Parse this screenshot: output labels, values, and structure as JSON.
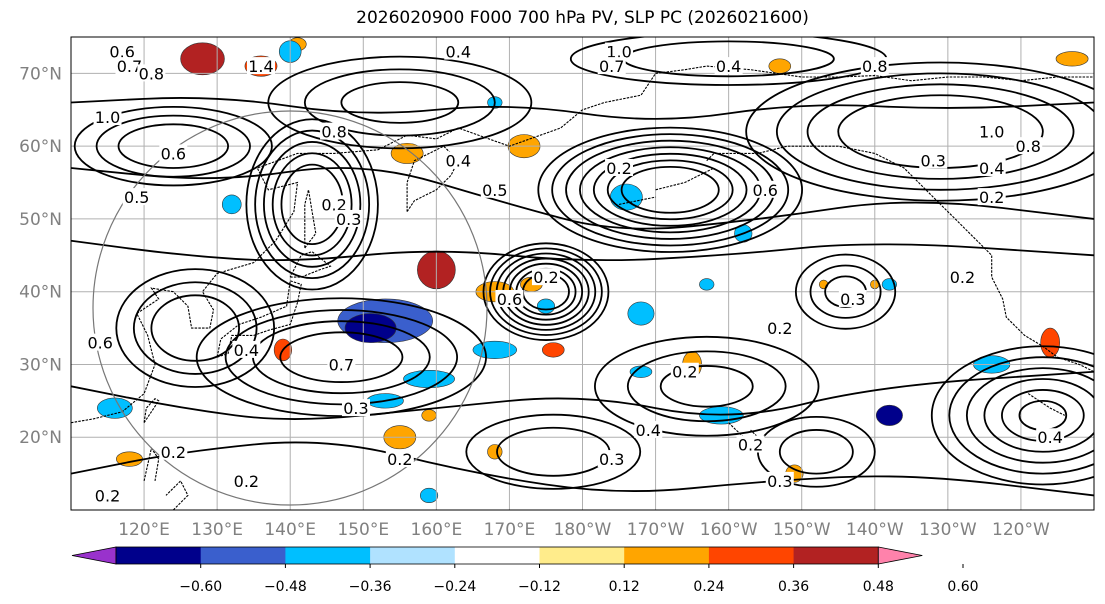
{
  "title": "2026020900 F000 700 hPa PV, SLP PC (2026021600)",
  "map": {
    "lat_labels": [
      "70°N",
      "60°N",
      "50°N",
      "40°N",
      "30°N",
      "20°N"
    ],
    "lat_values": [
      70,
      60,
      50,
      40,
      30,
      20
    ],
    "lon_labels": [
      "120°E",
      "130°E",
      "140°E",
      "150°E",
      "160°E",
      "170°E",
      "180°W",
      "170°W",
      "160°W",
      "150°W",
      "140°W",
      "130°W",
      "120°W"
    ],
    "lon_values": [
      120,
      130,
      140,
      150,
      160,
      170,
      180,
      190,
      200,
      210,
      220,
      230,
      240
    ],
    "lat_range": [
      10,
      75
    ],
    "lon_range": [
      110,
      250
    ],
    "grid": true,
    "contour_labels": [
      {
        "text": "0.6",
        "lon": 117,
        "lat": 73
      },
      {
        "text": "0.7",
        "lon": 118,
        "lat": 71
      },
      {
        "text": "0.8",
        "lon": 121,
        "lat": 70
      },
      {
        "text": "1.4",
        "lon": 136,
        "lat": 71
      },
      {
        "text": "0.4",
        "lon": 163,
        "lat": 73
      },
      {
        "text": "1.0",
        "lon": 185,
        "lat": 73
      },
      {
        "text": "0.7",
        "lon": 184,
        "lat": 71
      },
      {
        "text": "0.4",
        "lon": 200,
        "lat": 71
      },
      {
        "text": "0.8",
        "lon": 220,
        "lat": 71
      },
      {
        "text": "1.0",
        "lon": 115,
        "lat": 64
      },
      {
        "text": "0.8",
        "lon": 146,
        "lat": 62
      },
      {
        "text": "0.6",
        "lon": 124,
        "lat": 59
      },
      {
        "text": "0.5",
        "lon": 119,
        "lat": 53
      },
      {
        "text": "0.2",
        "lon": 146,
        "lat": 52
      },
      {
        "text": "0.3",
        "lon": 148,
        "lat": 50
      },
      {
        "text": "0.4",
        "lon": 163,
        "lat": 58
      },
      {
        "text": "0.5",
        "lon": 168,
        "lat": 54
      },
      {
        "text": "0.2",
        "lon": 185,
        "lat": 57
      },
      {
        "text": "0.6",
        "lon": 205,
        "lat": 54
      },
      {
        "text": "0.3",
        "lon": 228,
        "lat": 58
      },
      {
        "text": "0.4",
        "lon": 236,
        "lat": 57
      },
      {
        "text": "0.2",
        "lon": 236,
        "lat": 53
      },
      {
        "text": "0.8",
        "lon": 241,
        "lat": 60
      },
      {
        "text": "1.0",
        "lon": 236,
        "lat": 62
      },
      {
        "text": "0.2",
        "lon": 175,
        "lat": 42
      },
      {
        "text": "0.6",
        "lon": 170,
        "lat": 39
      },
      {
        "text": "0.2",
        "lon": 207,
        "lat": 35
      },
      {
        "text": "0.3",
        "lon": 217,
        "lat": 39
      },
      {
        "text": "0.2",
        "lon": 232,
        "lat": 42
      },
      {
        "text": "0.4",
        "lon": 134,
        "lat": 32
      },
      {
        "text": "0.7",
        "lon": 147,
        "lat": 30
      },
      {
        "text": "0.3",
        "lon": 149,
        "lat": 24
      },
      {
        "text": "0.2",
        "lon": 194,
        "lat": 29
      },
      {
        "text": "0.4",
        "lon": 189,
        "lat": 21
      },
      {
        "text": "0.3",
        "lon": 184,
        "lat": 17
      },
      {
        "text": "0.2",
        "lon": 203,
        "lat": 19
      },
      {
        "text": "0.4",
        "lon": 244,
        "lat": 20
      },
      {
        "text": "0.3",
        "lon": 207,
        "lat": 14
      },
      {
        "text": "0.2",
        "lon": 124,
        "lat": 18
      },
      {
        "text": "0.2",
        "lon": 155,
        "lat": 17
      },
      {
        "text": "0.2",
        "lon": 134,
        "lat": 14
      },
      {
        "text": "0.2",
        "lon": 115,
        "lat": 12
      },
      {
        "text": "0.6",
        "lon": 114,
        "lat": 33
      }
    ],
    "pv_anomalies": [
      {
        "lon": 128,
        "lat": 72,
        "rx": 3.0,
        "ry": 2.2,
        "value": 0.55
      },
      {
        "lon": 136,
        "lat": 71,
        "rx": 2.2,
        "ry": 1.4,
        "value": 0.42
      },
      {
        "lon": 141,
        "lat": 74,
        "rx": 1.2,
        "ry": 0.9,
        "value": 0.3
      },
      {
        "lon": 172,
        "lat": 60,
        "rx": 2.2,
        "ry": 1.6,
        "value": 0.33
      },
      {
        "lon": 156,
        "lat": 59,
        "rx": 2.2,
        "ry": 1.4,
        "value": 0.3
      },
      {
        "lon": 160,
        "lat": 43,
        "rx": 2.6,
        "ry": 2.6,
        "value": 0.5
      },
      {
        "lon": 168,
        "lat": 40,
        "rx": 2.6,
        "ry": 1.4,
        "value": 0.35
      },
      {
        "lon": 173,
        "lat": 41,
        "rx": 1.5,
        "ry": 1.0,
        "value": 0.3
      },
      {
        "lon": 176,
        "lat": 32,
        "rx": 1.5,
        "ry": 1.0,
        "value": 0.42
      },
      {
        "lon": 139,
        "lat": 32,
        "rx": 1.2,
        "ry": 1.5,
        "value": 0.45
      },
      {
        "lon": 155,
        "lat": 20,
        "rx": 2.2,
        "ry": 1.6,
        "value": 0.35
      },
      {
        "lon": 168,
        "lat": 18,
        "rx": 1.0,
        "ry": 1.0,
        "value": 0.3
      },
      {
        "lon": 159,
        "lat": 23,
        "rx": 1.0,
        "ry": 0.8,
        "value": 0.3
      },
      {
        "lon": 118,
        "lat": 17,
        "rx": 1.8,
        "ry": 1.0,
        "value": 0.35
      },
      {
        "lon": 195,
        "lat": 30,
        "rx": 1.3,
        "ry": 1.8,
        "value": 0.3
      },
      {
        "lon": 244,
        "lat": 33,
        "rx": 1.3,
        "ry": 2.0,
        "value": 0.42
      },
      {
        "lon": 220,
        "lat": 41,
        "rx": 0.6,
        "ry": 0.6,
        "value": 0.3
      },
      {
        "lon": 209,
        "lat": 15,
        "rx": 1.2,
        "ry": 1.2,
        "value": 0.33
      },
      {
        "lon": 213,
        "lat": 41,
        "rx": 0.6,
        "ry": 0.6,
        "value": 0.3
      },
      {
        "lon": 247,
        "lat": 72,
        "rx": 2.2,
        "ry": 1.0,
        "value": 0.3
      },
      {
        "lon": 207,
        "lat": 71,
        "rx": 1.5,
        "ry": 1.0,
        "value": 0.3
      },
      {
        "lon": 153,
        "lat": 36,
        "rx": 6.5,
        "ry": 3.0,
        "value": -0.45
      },
      {
        "lon": 151,
        "lat": 35,
        "rx": 3.5,
        "ry": 2.0,
        "value": -0.55
      },
      {
        "lon": 168,
        "lat": 32,
        "rx": 3.0,
        "ry": 1.2,
        "value": -0.3
      },
      {
        "lon": 159,
        "lat": 28,
        "rx": 3.5,
        "ry": 1.2,
        "value": -0.3
      },
      {
        "lon": 153,
        "lat": 25,
        "rx": 2.5,
        "ry": 1.0,
        "value": -0.3
      },
      {
        "lon": 188,
        "lat": 37,
        "rx": 1.8,
        "ry": 1.6,
        "value": -0.35
      },
      {
        "lon": 175,
        "lat": 38,
        "rx": 1.2,
        "ry": 1.0,
        "value": -0.3
      },
      {
        "lon": 188,
        "lat": 29,
        "rx": 1.5,
        "ry": 0.8,
        "value": -0.3
      },
      {
        "lon": 199,
        "lat": 23,
        "rx": 3.0,
        "ry": 1.2,
        "value": -0.33
      },
      {
        "lon": 222,
        "lat": 23,
        "rx": 1.8,
        "ry": 1.4,
        "value": -0.5
      },
      {
        "lon": 236,
        "lat": 30,
        "rx": 2.5,
        "ry": 1.2,
        "value": -0.33
      },
      {
        "lon": 186,
        "lat": 53,
        "rx": 2.2,
        "ry": 1.8,
        "value": -0.3
      },
      {
        "lon": 202,
        "lat": 48,
        "rx": 1.2,
        "ry": 1.2,
        "value": -0.3
      },
      {
        "lon": 116,
        "lat": 24,
        "rx": 2.4,
        "ry": 1.4,
        "value": -0.33
      },
      {
        "lon": 132,
        "lat": 52,
        "rx": 1.3,
        "ry": 1.3,
        "value": -0.3
      },
      {
        "lon": 140,
        "lat": 73,
        "rx": 1.5,
        "ry": 1.5,
        "value": -0.3
      },
      {
        "lon": 168,
        "lat": 66,
        "rx": 1.0,
        "ry": 0.8,
        "value": -0.3
      },
      {
        "lon": 197,
        "lat": 41,
        "rx": 1.0,
        "ry": 0.8,
        "value": -0.3
      },
      {
        "lon": 159,
        "lat": 12,
        "rx": 1.2,
        "ry": 1.0,
        "value": -0.3
      },
      {
        "lon": 222,
        "lat": 41,
        "rx": 1.0,
        "ry": 0.8,
        "value": -0.3
      }
    ],
    "slp_lows": [
      {
        "lon": 175,
        "lat": 40,
        "levels": [
          0.95,
          0.85,
          0.75,
          0.65,
          0.55,
          0.45,
          0.35
        ],
        "base_rx": 9,
        "base_ry": 7
      },
      {
        "lon": 192,
        "lat": 54,
        "levels": [
          0.95,
          0.85,
          0.75,
          0.65,
          0.55,
          0.45,
          0.35
        ],
        "base_rx": 19,
        "base_ry": 9
      },
      {
        "lon": 143,
        "lat": 52,
        "levels": [
          0.9,
          0.78,
          0.66,
          0.54,
          0.42
        ],
        "base_rx": 10,
        "base_ry": 13
      },
      {
        "lon": 147,
        "lat": 31,
        "levels": [
          0.9,
          0.72,
          0.55,
          0.38
        ],
        "base_rx": 22,
        "base_ry": 9
      },
      {
        "lon": 127,
        "lat": 35,
        "levels": [
          0.9,
          0.7,
          0.5
        ],
        "base_rx": 12,
        "base_ry": 9
      },
      {
        "lon": 216,
        "lat": 40,
        "levels": [
          0.85,
          0.6,
          0.35
        ],
        "base_rx": 8,
        "base_ry": 6
      },
      {
        "lon": 243,
        "lat": 23,
        "levels": [
          0.95,
          0.8,
          0.65,
          0.5,
          0.35,
          0.2
        ],
        "base_rx": 16,
        "base_ry": 10
      },
      {
        "lon": 197,
        "lat": 27,
        "levels": [
          0.85,
          0.6,
          0.35
        ],
        "base_rx": 18,
        "base_ry": 8
      },
      {
        "lon": 229,
        "lat": 62,
        "levels": [
          0.95,
          0.8,
          0.65,
          0.5
        ],
        "base_rx": 28,
        "base_ry": 10
      },
      {
        "lon": 155,
        "lat": 66,
        "levels": [
          0.9,
          0.65,
          0.4
        ],
        "base_rx": 20,
        "base_ry": 7
      },
      {
        "lon": 124,
        "lat": 60,
        "levels": [
          0.9,
          0.7,
          0.5
        ],
        "base_rx": 15,
        "base_ry": 6
      },
      {
        "lon": 176,
        "lat": 18,
        "levels": [
          0.85,
          0.55
        ],
        "base_rx": 14,
        "base_ry": 6
      },
      {
        "lon": 212,
        "lat": 18,
        "levels": [
          0.8,
          0.5
        ],
        "base_rx": 10,
        "base_ry": 6
      },
      {
        "lon": 200,
        "lat": 72,
        "levels": [
          0.9,
          0.6
        ],
        "base_rx": 24,
        "base_ry": 4
      }
    ]
  },
  "colorbar": {
    "colors": [
      "#9932cc",
      "#00008b",
      "#3a5fcd",
      "#00bfff",
      "#b0e2ff",
      "#ffffff",
      "#ffec8b",
      "#ffa500",
      "#ff4500",
      "#b22222",
      "#ff82ab"
    ],
    "tick_labels": [
      "−0.60",
      "−0.48",
      "−0.36",
      "−0.24",
      "−0.12",
      "0.12",
      "0.24",
      "0.36",
      "0.48",
      "0.60"
    ],
    "bounds": [
      -0.6,
      -0.48,
      -0.36,
      -0.24,
      -0.12,
      0.12,
      0.24,
      0.36,
      0.48,
      0.6
    ]
  }
}
